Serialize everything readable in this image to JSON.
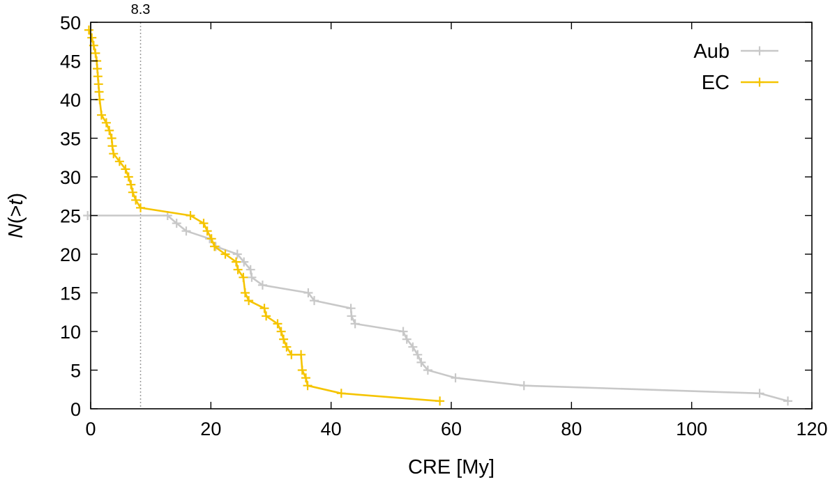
{
  "chart_data": {
    "type": "line",
    "xlabel": "CRE [My]",
    "ylabel": "N(>t)",
    "xlim": [
      0,
      120
    ],
    "ylim": [
      0,
      50
    ],
    "xticks": [
      0,
      20,
      40,
      60,
      80,
      100,
      120
    ],
    "yticks": [
      0,
      5,
      10,
      15,
      20,
      25,
      30,
      35,
      40,
      45,
      50
    ],
    "reference_line": {
      "x": 8.3,
      "label": "8.3",
      "style": "dotted",
      "color": "#999999"
    },
    "legend_position": "top-right",
    "series": [
      {
        "name": "Aub",
        "color": "#c8c8c8",
        "points": [
          [
            -0.5,
            25
          ],
          [
            12.8,
            25
          ],
          [
            14.3,
            24
          ],
          [
            15.9,
            23
          ],
          [
            19.8,
            22
          ],
          [
            20.8,
            21
          ],
          [
            24.4,
            20
          ],
          [
            25.5,
            19
          ],
          [
            26.6,
            18
          ],
          [
            26.8,
            17
          ],
          [
            28.6,
            16
          ],
          [
            36.2,
            15
          ],
          [
            37.2,
            14
          ],
          [
            43.3,
            13
          ],
          [
            43.4,
            12
          ],
          [
            44.0,
            11
          ],
          [
            52.0,
            10
          ],
          [
            52.6,
            9
          ],
          [
            53.6,
            8
          ],
          [
            54.4,
            7
          ],
          [
            55.0,
            6
          ],
          [
            56.1,
            5
          ],
          [
            60.7,
            4
          ],
          [
            72.1,
            3
          ],
          [
            111.3,
            2
          ],
          [
            116.0,
            1
          ]
        ]
      },
      {
        "name": "EC",
        "color": "#f5c400",
        "points": [
          [
            -0.3,
            49
          ],
          [
            0.2,
            48
          ],
          [
            0.5,
            47
          ],
          [
            0.8,
            46
          ],
          [
            1.0,
            45
          ],
          [
            1.1,
            44
          ],
          [
            1.2,
            43
          ],
          [
            1.3,
            42
          ],
          [
            1.4,
            41
          ],
          [
            1.5,
            40
          ],
          [
            1.8,
            38
          ],
          [
            2.6,
            37
          ],
          [
            3.1,
            36
          ],
          [
            3.5,
            35
          ],
          [
            3.6,
            34
          ],
          [
            3.8,
            33
          ],
          [
            4.8,
            32
          ],
          [
            5.8,
            31
          ],
          [
            6.3,
            30
          ],
          [
            6.7,
            29
          ],
          [
            7.0,
            28
          ],
          [
            7.5,
            27
          ],
          [
            8.3,
            26
          ],
          [
            16.6,
            25
          ],
          [
            18.8,
            24
          ],
          [
            19.4,
            23
          ],
          [
            20.1,
            22
          ],
          [
            20.6,
            21
          ],
          [
            22.4,
            20
          ],
          [
            24.2,
            19
          ],
          [
            24.5,
            18
          ],
          [
            25.4,
            17
          ],
          [
            25.7,
            15
          ],
          [
            26.3,
            14
          ],
          [
            28.9,
            13
          ],
          [
            29.2,
            12
          ],
          [
            31.1,
            11
          ],
          [
            31.7,
            10
          ],
          [
            32.1,
            9
          ],
          [
            32.6,
            8
          ],
          [
            33.4,
            7
          ],
          [
            35.0,
            7
          ],
          [
            35.2,
            5
          ],
          [
            35.8,
            4
          ],
          [
            36.1,
            3
          ],
          [
            41.7,
            2
          ],
          [
            58.1,
            1
          ]
        ]
      }
    ]
  }
}
